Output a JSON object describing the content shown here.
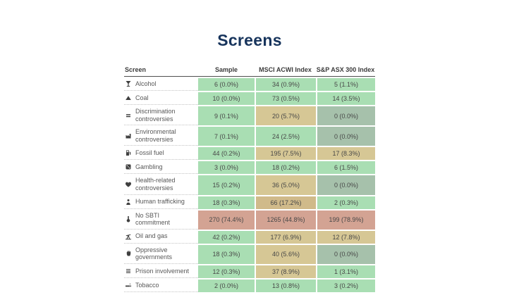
{
  "title": "Screens",
  "colors": {
    "green": "#a9deb3",
    "tan": "#d6c795",
    "tan_dark": "#d0ba8a",
    "salmon": "#d3a393",
    "gray": "#a6c1ab",
    "title_text": "#17345c",
    "header_rule": "#4f4f4f"
  },
  "table": {
    "columns": [
      "Screen",
      "Sample",
      "MSCI ACWI Index",
      "S&P ASX 300 Index"
    ],
    "rows": [
      {
        "icon": "cocktail-glass",
        "label": "Alcohol",
        "values": [
          "6 (0.0%)",
          "34 (0.9%)",
          "5 (1.1%)"
        ],
        "tones": [
          "green",
          "green",
          "green"
        ]
      },
      {
        "icon": "coal-mound",
        "label": "Coal",
        "values": [
          "10 (0.0%)",
          "73 (0.5%)",
          "14 (3.5%)"
        ],
        "tones": [
          "green",
          "green",
          "green"
        ]
      },
      {
        "icon": "scales",
        "label": "Discrimination controversies",
        "values": [
          "9 (0.1%)",
          "20 (5.7%)",
          "0 (0.0%)"
        ],
        "tones": [
          "green",
          "tan",
          "gray"
        ]
      },
      {
        "icon": "factory",
        "label": "Environmental controversies",
        "values": [
          "7 (0.1%)",
          "24 (2.5%)",
          "0 (0.0%)"
        ],
        "tones": [
          "green",
          "green",
          "gray"
        ]
      },
      {
        "icon": "gas-pump",
        "label": "Fossil fuel",
        "values": [
          "44 (0.2%)",
          "195 (7.5%)",
          "17 (8.3%)"
        ],
        "tones": [
          "green",
          "tan",
          "tan"
        ]
      },
      {
        "icon": "dice",
        "label": "Gambling",
        "values": [
          "3 (0.0%)",
          "18 (0.2%)",
          "6 (1.5%)"
        ],
        "tones": [
          "green",
          "green",
          "green"
        ]
      },
      {
        "icon": "heart",
        "label": "Health-related controversies",
        "values": [
          "15 (0.2%)",
          "36 (5.0%)",
          "0 (0.0%)"
        ],
        "tones": [
          "green",
          "tan",
          "gray"
        ]
      },
      {
        "icon": "person",
        "label": "Human trafficking",
        "values": [
          "18 (0.3%)",
          "66 (17.2%)",
          "2 (0.3%)"
        ],
        "tones": [
          "green",
          "tan_dark",
          "green"
        ]
      },
      {
        "icon": "thermometer",
        "label": "No SBTI commitment",
        "values": [
          "270 (74.4%)",
          "1265 (44.8%)",
          "199 (78.9%)"
        ],
        "tones": [
          "salmon",
          "salmon",
          "salmon"
        ]
      },
      {
        "icon": "oil-pump",
        "label": "Oil and gas",
        "values": [
          "42 (0.2%)",
          "177 (6.9%)",
          "12 (7.8%)"
        ],
        "tones": [
          "green",
          "tan",
          "tan"
        ]
      },
      {
        "icon": "fist",
        "label": "Oppressive governments",
        "values": [
          "18 (0.3%)",
          "40 (5.6%)",
          "0 (0.0%)"
        ],
        "tones": [
          "green",
          "tan",
          "gray"
        ]
      },
      {
        "icon": "prison-bars",
        "label": "Prison involvement",
        "values": [
          "12 (0.3%)",
          "37 (8.9%)",
          "1 (3.1%)"
        ],
        "tones": [
          "green",
          "tan",
          "green"
        ]
      },
      {
        "icon": "cigarette",
        "label": "Tobacco",
        "values": [
          "2 (0.0%)",
          "13 (0.8%)",
          "3 (0.2%)"
        ],
        "tones": [
          "green",
          "green",
          "green"
        ]
      }
    ]
  },
  "chart_data": {
    "type": "table",
    "title": "Screens",
    "columns": [
      "Screen",
      "Sample",
      "MSCI ACWI Index",
      "S&P ASX 300 Index"
    ],
    "rows": [
      [
        "Alcohol",
        "6 (0.0%)",
        "34 (0.9%)",
        "5 (1.1%)"
      ],
      [
        "Coal",
        "10 (0.0%)",
        "73 (0.5%)",
        "14 (3.5%)"
      ],
      [
        "Discrimination controversies",
        "9 (0.1%)",
        "20 (5.7%)",
        "0 (0.0%)"
      ],
      [
        "Environmental controversies",
        "7 (0.1%)",
        "24 (2.5%)",
        "0 (0.0%)"
      ],
      [
        "Fossil fuel",
        "44 (0.2%)",
        "195 (7.5%)",
        "17 (8.3%)"
      ],
      [
        "Gambling",
        "3 (0.0%)",
        "18 (0.2%)",
        "6 (1.5%)"
      ],
      [
        "Health-related controversies",
        "15 (0.2%)",
        "36 (5.0%)",
        "0 (0.0%)"
      ],
      [
        "Human trafficking",
        "18 (0.3%)",
        "66 (17.2%)",
        "2 (0.3%)"
      ],
      [
        "No SBTI commitment",
        "270 (74.4%)",
        "1265 (44.8%)",
        "199 (78.9%)"
      ],
      [
        "Oil and gas",
        "42 (0.2%)",
        "177 (6.9%)",
        "12 (7.8%)"
      ],
      [
        "Oppressive governments",
        "18 (0.3%)",
        "40 (5.6%)",
        "0 (0.0%)"
      ],
      [
        "Prison involvement",
        "12 (0.3%)",
        "37 (8.9%)",
        "1 (3.1%)"
      ],
      [
        "Tobacco",
        "2 (0.0%)",
        "13 (0.8%)",
        "3 (0.2%)"
      ]
    ],
    "legend": "cell color heatmap: green = low share, tan = mid share, salmon = high share, sage-gray = 0 (0.0%)",
    "grid": false
  }
}
